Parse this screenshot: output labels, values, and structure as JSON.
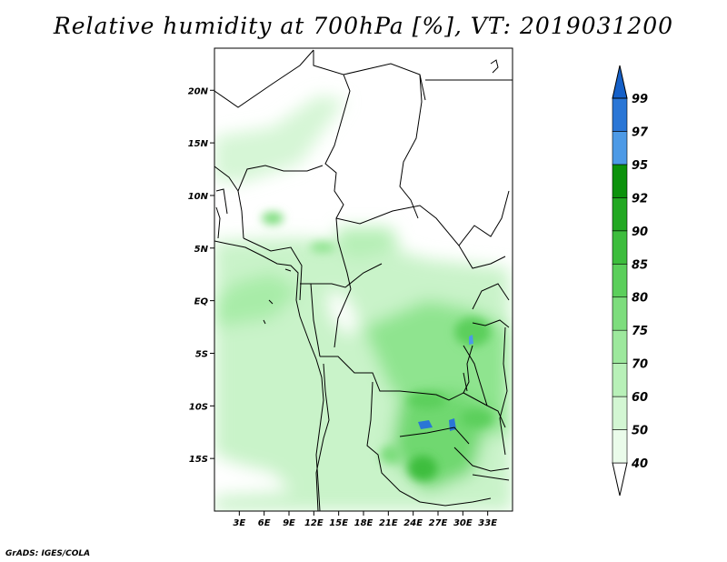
{
  "title": "Relative humidity at 700hPa [%], VT: 2019031200",
  "credit": "GrADS: IGES/COLA",
  "map": {
    "lon_range": [
      0,
      36
    ],
    "lat_range": [
      -20,
      24
    ],
    "lon_ticks": [
      "3E",
      "6E",
      "9E",
      "12E",
      "15E",
      "18E",
      "21E",
      "24E",
      "27E",
      "30E",
      "33E"
    ],
    "lat_ticks": [
      "20N",
      "15N",
      "10N",
      "5N",
      "EQ",
      "5S",
      "10S",
      "15S"
    ]
  },
  "colorbar": {
    "labels": [
      "40",
      "50",
      "60",
      "70",
      "75",
      "80",
      "85",
      "90",
      "92",
      "95",
      "97",
      "99"
    ],
    "colors": [
      "#ffffff",
      "#eafbea",
      "#d3f6d3",
      "#b8f0b8",
      "#9de89d",
      "#7ddd7d",
      "#5bcf5b",
      "#3dbd3d",
      "#22a822",
      "#0c920c",
      "#4d9ae6",
      "#2a76d6",
      "#1560c8"
    ]
  }
}
